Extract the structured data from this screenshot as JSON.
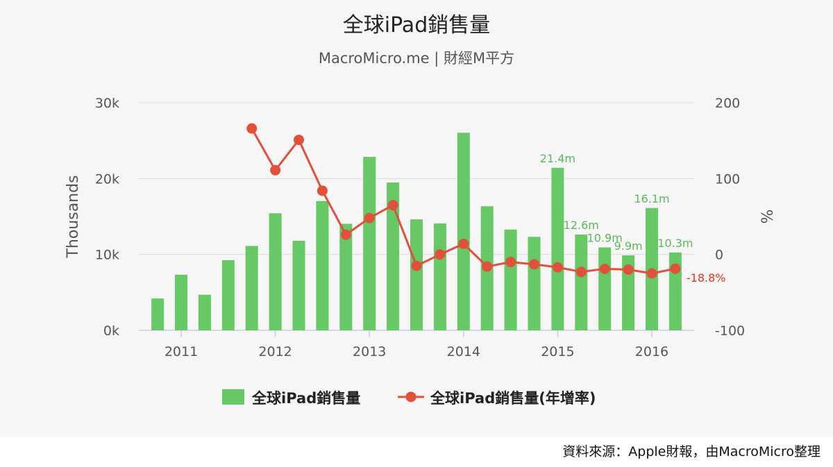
{
  "chart_data": {
    "type": "bar",
    "title": "全球iPad銷售量",
    "subtitle": "MacroMicro.me | 財經M平方",
    "y_left_label": "Thousands",
    "y_right_label": "%",
    "y_left_range": [
      0,
      30000
    ],
    "y_right_range": [
      -100,
      200
    ],
    "y_left_ticks": [
      "0k",
      "10k",
      "20k",
      "30k"
    ],
    "y_right_ticks": [
      "-100",
      "0",
      "100",
      "200"
    ],
    "x_ticks": [
      "2011",
      "2012",
      "2013",
      "2014",
      "2015",
      "2016"
    ],
    "x_tick_positions": [
      2011.0,
      2012.0,
      2013.0,
      2014.0,
      2015.0,
      2016.0
    ],
    "x_range": [
      2010.55,
      2016.45
    ],
    "grid": true,
    "legend_position": "bottom",
    "bar_color": "#66c966",
    "line_color": "#e0503a",
    "x": [
      2010.75,
      2011.0,
      2011.25,
      2011.5,
      2011.75,
      2012.0,
      2012.25,
      2012.5,
      2012.75,
      2013.0,
      2013.25,
      2013.5,
      2013.75,
      2014.0,
      2014.25,
      2014.5,
      2014.75,
      2015.0,
      2015.25,
      2015.5,
      2015.75,
      2016.0,
      2016.25
    ],
    "series": [
      {
        "name": "全球iPad銷售量",
        "kind": "bar",
        "values": [
          4190,
          7330,
          4690,
          9250,
          11120,
          15430,
          11800,
          17040,
          14040,
          22860,
          19480,
          14620,
          14080,
          26040,
          16350,
          13280,
          12320,
          21420,
          12620,
          10930,
          9880,
          16120,
          10250
        ],
        "labels": [
          "",
          "",
          "",
          "",
          "",
          "",
          "",
          "",
          "",
          "",
          "",
          "",
          "",
          "",
          "",
          "",
          "",
          "21.4m",
          "12.6m",
          "10.9m",
          "9.9m",
          "16.1m",
          "10.3m"
        ]
      },
      {
        "name": "全球iPad銷售量(年增率)",
        "kind": "line",
        "values": [
          null,
          null,
          null,
          null,
          166,
          111,
          151,
          84,
          26,
          48,
          65,
          -15,
          0,
          14,
          -16,
          -10,
          -13,
          -17,
          -23,
          -19,
          -20,
          -25,
          -18.8
        ],
        "labels": [
          "",
          "",
          "",
          "",
          "",
          "",
          "",
          "",
          "",
          "",
          "",
          "",
          "",
          "",
          "",
          "",
          "",
          "",
          "",
          "",
          "",
          "",
          "-18.8%"
        ]
      }
    ]
  },
  "footer": {
    "source": "資料來源：Apple財報，由MacroMicro整理"
  }
}
